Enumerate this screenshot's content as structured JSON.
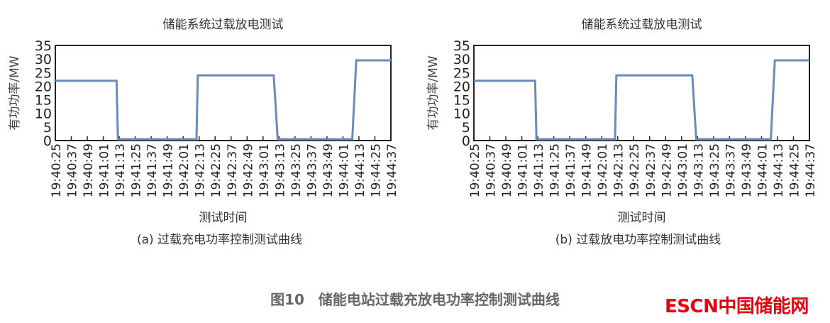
{
  "chart_data": [
    {
      "type": "line",
      "title": "储能系统过载放电测试",
      "xlabel": "测试时间",
      "ylabel": "有功功率/MW",
      "caption": "(a) 过载充电功率控制测试曲线",
      "ylim": [
        0,
        35
      ],
      "yticks": [
        0,
        5,
        10,
        15,
        20,
        25,
        30,
        35
      ],
      "xticks": [
        "19:40:25",
        "19:40:37",
        "19:40:49",
        "19:41:01",
        "19:41:13",
        "19:41:25",
        "19:41:37",
        "19:41:49",
        "19:42:01",
        "19:42:13",
        "19:42:25",
        "19:42:37",
        "19:42:49",
        "19:43:01",
        "19:43:13",
        "19:43:25",
        "19:43:37",
        "19:43:49",
        "19:44:01",
        "19:44:13",
        "19:44:25",
        "19:44:37"
      ],
      "grid": false,
      "color": "#6a8bb8",
      "x": [
        "19:40:25",
        "19:41:11",
        "19:41:12",
        "19:42:11",
        "19:42:12",
        "19:43:09",
        "19:43:12",
        "19:44:08",
        "19:44:11",
        "19:44:37"
      ],
      "y": [
        22,
        22,
        0.5,
        0.5,
        24,
        24,
        0.5,
        0.5,
        29.5,
        29.5
      ]
    },
    {
      "type": "line",
      "title": "储能系统过载放电测试",
      "xlabel": "测试时间",
      "ylabel": "有功功率/MW",
      "caption": "(b) 过载放电功率控制测试曲线",
      "ylim": [
        0,
        35
      ],
      "yticks": [
        0,
        5,
        10,
        15,
        20,
        25,
        30,
        35
      ],
      "xticks": [
        "19:40:25",
        "19:40:37",
        "19:40:49",
        "19:41:01",
        "19:41:13",
        "19:41:25",
        "19:41:37",
        "19:41:49",
        "19:42:01",
        "19:42:13",
        "19:42:25",
        "19:42:37",
        "19:42:49",
        "19:43:01",
        "19:43:13",
        "19:43:25",
        "19:43:37",
        "19:43:49",
        "19:44:01",
        "19:44:13",
        "19:44:25",
        "19:44:37"
      ],
      "grid": false,
      "color": "#6a8bb8",
      "x": [
        "19:40:25",
        "19:41:11",
        "19:41:12",
        "19:42:11",
        "19:42:12",
        "19:43:09",
        "19:43:12",
        "19:44:08",
        "19:44:11",
        "19:44:37"
      ],
      "y": [
        22,
        22,
        0.5,
        0.5,
        24,
        24,
        0.5,
        0.5,
        29.5,
        29.5
      ]
    }
  ],
  "figure_caption": "图10　储能电站过载充放电功率控制测试曲线",
  "logo": "ESCN中国储能网"
}
